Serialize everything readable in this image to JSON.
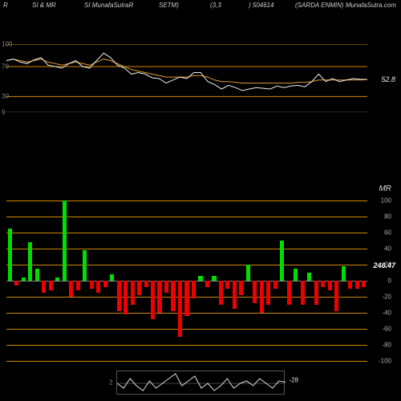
{
  "header": {
    "h1": "R",
    "h2": "SI & MR",
    "h3": "SI MunafaSutraR",
    "h4": "SETM)",
    "h5": "(3,3",
    "h6": ") 504614",
    "h7": "(SARDA ENMIN) MunafaSutra.com"
  },
  "top_chart": {
    "type": "line",
    "ylim": [
      9,
      100
    ],
    "y_ticks": [
      9,
      30,
      70,
      100
    ],
    "grid_color_orange": "#cc8800",
    "grid_color_gray": "#555555",
    "white_line_color": "#eeeeee",
    "orange_line_color": "#dd9933",
    "current_value": "52.8",
    "white_line": [
      78,
      80,
      76,
      74,
      79,
      82,
      72,
      70,
      68,
      74,
      78,
      70,
      68,
      78,
      88,
      82,
      72,
      68,
      60,
      62,
      60,
      55,
      54,
      48,
      52,
      56,
      54,
      62,
      62,
      50,
      46,
      40,
      45,
      42,
      38,
      40,
      42,
      41,
      40,
      44,
      42,
      44,
      45,
      43,
      50,
      60,
      50,
      54,
      50,
      52,
      54,
      53,
      52.8
    ],
    "orange_line": [
      78,
      80,
      78,
      76,
      78,
      80,
      76,
      74,
      72,
      74,
      76,
      74,
      72,
      76,
      80,
      78,
      74,
      70,
      66,
      64,
      62,
      60,
      58,
      56,
      56,
      56,
      56,
      58,
      58,
      56,
      52,
      50,
      50,
      49,
      48,
      48,
      48,
      48,
      48,
      48,
      48,
      48,
      49,
      49,
      50,
      52,
      52,
      52,
      52,
      52,
      52,
      52,
      52.8
    ]
  },
  "bottom_chart": {
    "type": "bar",
    "label": "MR",
    "ylim": [
      -100,
      100
    ],
    "y_ticks": [
      -100,
      -80,
      -60,
      -40,
      -20,
      0,
      20,
      40,
      60,
      80,
      100
    ],
    "grid_color_orange": "#cc8800",
    "pos_color": "#00dd00",
    "neg_color": "#ee0000",
    "selected_index": 42,
    "selected_value": "248.47",
    "bars": [
      65,
      -6,
      4,
      48,
      15,
      -15,
      -12,
      4,
      110,
      -20,
      -12,
      38,
      -10,
      -15,
      -8,
      8,
      -38,
      -42,
      -30,
      -18,
      -8,
      -48,
      -40,
      -15,
      -38,
      -70,
      -44,
      -22,
      6,
      -8,
      6,
      -30,
      -10,
      -35,
      -18,
      20,
      -28,
      -40,
      -30,
      -10,
      50,
      -30,
      15,
      -30,
      10,
      -30,
      -8,
      -12,
      -38,
      18,
      -10,
      -10,
      -8
    ]
  },
  "mini_chart": {
    "left_label": "2",
    "right_label": "-28",
    "line_color": "#dddddd",
    "values": [
      0.5,
      0.3,
      0.7,
      0.4,
      0.2,
      0.6,
      0.3,
      0.5,
      0.7,
      0.9,
      0.4,
      0.6,
      0.8,
      0.3,
      0.5,
      0.2,
      0.4,
      0.7,
      0.3,
      0.5,
      0.6,
      0.4,
      0.7,
      0.5,
      0.3,
      0.6,
      0.55
    ]
  }
}
